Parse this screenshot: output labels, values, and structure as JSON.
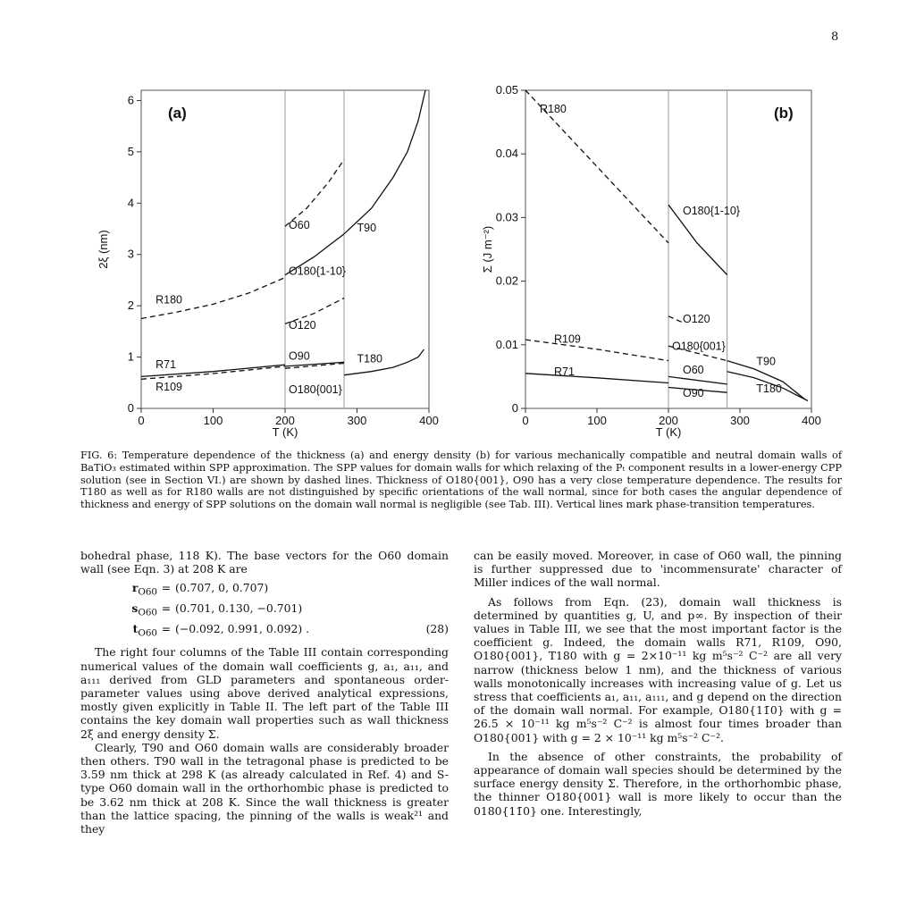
{
  "page_number": "8",
  "figure": {
    "panel_a": {
      "label": "(a)",
      "ylabel": "2ξ (nm)",
      "xlabel": "T (K)",
      "xticks": [
        "0",
        "100",
        "200",
        "300",
        "400"
      ],
      "yticks": [
        "0",
        "1",
        "2",
        "3",
        "4",
        "5",
        "6"
      ],
      "curve_labels": {
        "O60": "O60",
        "T90": "T90",
        "O180_1_10": "O180{1-10}",
        "R180": "R180",
        "O120": "O120",
        "R71": "R71",
        "O90": "O90",
        "T180": "T180",
        "R109": "R109",
        "O180_001": "O180{001}"
      }
    },
    "panel_b": {
      "label": "(b)",
      "ylabel": "Σ (J m⁻²)",
      "xlabel": "T (K)",
      "xticks": [
        "0",
        "100",
        "200",
        "300",
        "400"
      ],
      "yticks": [
        "0",
        "0.01",
        "0.02",
        "0.03",
        "0.04",
        "0.05"
      ],
      "curve_labels": {
        "R180": "R180",
        "O180_1_10": "O180{1-10}",
        "O120": "O120",
        "R109": "R109",
        "O180_001": "O180{001}",
        "T90": "T90",
        "R71": "R71",
        "O60": "O60",
        "T180": "T180",
        "O90": "O90"
      }
    }
  },
  "caption": "FIG. 6: Temperature dependence of the thickness (a) and energy density (b) for various mechanically compatible and neutral domain walls of BaTiO₃ estimated within SPP approximation. The SPP values for domain walls for which relaxing of the Pₜ component results in a lower-energy CPP solution (see in Section VI.) are shown by dashed lines. Thickness of O180{001}, O90 has a very close temperature dependence. The results for T180 as well as for R180 walls are not distinguished by specific orientations of the wall normal, since for both cases the angular dependence of thickness and energy of SPP solutions on the domain wall normal is negligible (see Tab. III). Vertical lines mark phase-transition temperatures.",
  "left_column": {
    "p1": "bohedral phase, 118 K). The base vectors for the O60 domain wall (see Eqn. 3) at 208 K are",
    "eq": [
      {
        "lhs": "r_O60",
        "rhs": "(0.707, 0, 0.707)",
        "no": ""
      },
      {
        "lhs": "s_O60",
        "rhs": "(0.701, 0.130, −0.701)",
        "no": ""
      },
      {
        "lhs": "t_O60",
        "rhs": "(−0.092, 0.991, 0.092) .",
        "no": "(28)"
      }
    ],
    "p2": "The right four columns of the Table III contain corresponding numerical values of the domain wall coefficients g, a₁, a₁₁, and a₁₁₁ derived from GLD parameters and spontaneous order-parameter values using above derived analytical expressions, mostly given explicitly in Table II. The left part of the Table III contains the key domain wall properties such as wall thickness 2ξ and energy density Σ.",
    "p3": "Clearly, T90 and O60 domain walls are considerably broader then others. T90 wall in the tetragonal phase is predicted to be 3.59 nm thick at 298 K (as already calculated in Ref. 4) and S-type O60 domain wall in the orthorhombic phase is predicted to be 3.62 nm thick at 208 K. Since the wall thickness is greater than the lattice spacing, the pinning of the walls is weak²¹ and they"
  },
  "right_column": {
    "p1": "can be easily moved. Moreover, in case of O60 wall, the pinning is further suppressed due to 'incommensurate' character of Miller indices of the wall normal.",
    "p2": "As follows from Eqn. (23), domain wall thickness is determined by quantities g, U, and p∞. By inspection of their values in Table III, we see that the most important factor is the coefficient g. Indeed, the domain walls R71, R109, O90, O180{001}, T180 with g = 2×10⁻¹¹ kg m⁵s⁻² C⁻² are all very narrow (thickness below 1 nm), and the thickness of various walls monotonically increases with increasing value of g. Let us stress that coefficients a₁, a₁₁, a₁₁₁, and g depend on the direction of the domain wall normal. For example, O180{11̄0} with g = 26.5 × 10⁻¹¹ kg m⁵s⁻² C⁻² is almost four times broader than O180{001} with g = 2 × 10⁻¹¹ kg m⁵s⁻² C⁻².",
    "p3": "In the absence of other constraints, the probability of appearance of domain wall species should be determined by the surface energy density Σ. Therefore, in the orthorhombic phase, the thinner O180{001} wall is more likely to occur than the 0180{11̄0} one. Interestingly,"
  },
  "chart_data": [
    {
      "type": "line",
      "panel": "(a)",
      "xlabel": "T (K)",
      "ylabel": "2ξ (nm)",
      "xlim": [
        0,
        400
      ],
      "ylim": [
        0,
        6.2
      ],
      "phase_transitions": [
        200,
        282
      ],
      "series": [
        {
          "name": "R180",
          "dash": true,
          "x": [
            0,
            50,
            100,
            150,
            200
          ],
          "y": [
            1.75,
            1.88,
            2.03,
            2.25,
            2.55
          ]
        },
        {
          "name": "O60",
          "dash": true,
          "x": [
            200,
            230,
            260,
            282
          ],
          "y": [
            3.55,
            3.9,
            4.4,
            4.85
          ]
        },
        {
          "name": "O180{1-10}",
          "dash": false,
          "x": [
            200,
            240,
            282
          ],
          "y": [
            2.6,
            2.95,
            3.4
          ]
        },
        {
          "name": "T90",
          "dash": false,
          "x": [
            282,
            320,
            350,
            370,
            385,
            395
          ],
          "y": [
            3.4,
            3.9,
            4.5,
            5.0,
            5.6,
            6.2
          ]
        },
        {
          "name": "O120",
          "dash": true,
          "x": [
            200,
            240,
            282
          ],
          "y": [
            1.65,
            1.85,
            2.15
          ]
        },
        {
          "name": "R71",
          "dash": false,
          "x": [
            0,
            100,
            200
          ],
          "y": [
            0.62,
            0.72,
            0.85
          ]
        },
        {
          "name": "R109",
          "dash": true,
          "x": [
            0,
            100,
            200
          ],
          "y": [
            0.57,
            0.68,
            0.82
          ]
        },
        {
          "name": "O90",
          "dash": false,
          "x": [
            200,
            282
          ],
          "y": [
            0.82,
            0.9
          ]
        },
        {
          "name": "O180{001}",
          "dash": true,
          "x": [
            200,
            282
          ],
          "y": [
            0.78,
            0.88
          ]
        },
        {
          "name": "T180",
          "dash": false,
          "x": [
            282,
            320,
            350,
            370,
            385,
            393
          ],
          "y": [
            0.65,
            0.72,
            0.8,
            0.9,
            1.0,
            1.15
          ]
        }
      ]
    },
    {
      "type": "line",
      "panel": "(b)",
      "xlabel": "T (K)",
      "ylabel": "Σ (J m⁻²)",
      "xlim": [
        0,
        400
      ],
      "ylim": [
        0,
        0.05
      ],
      "phase_transitions": [
        200,
        282
      ],
      "series": [
        {
          "name": "R180",
          "dash": true,
          "x": [
            0,
            100,
            200
          ],
          "y": [
            0.05,
            0.038,
            0.026
          ]
        },
        {
          "name": "O180{1-10}",
          "dash": false,
          "x": [
            200,
            240,
            282
          ],
          "y": [
            0.032,
            0.026,
            0.021
          ]
        },
        {
          "name": "O120",
          "dash": true,
          "x": [
            200,
            220
          ],
          "y": [
            0.0145,
            0.0135
          ]
        },
        {
          "name": "R109",
          "dash": true,
          "x": [
            0,
            100,
            200
          ],
          "y": [
            0.0108,
            0.0093,
            0.0075
          ]
        },
        {
          "name": "O180{001}",
          "dash": true,
          "x": [
            200,
            282
          ],
          "y": [
            0.0098,
            0.0075
          ]
        },
        {
          "name": "T90",
          "dash": false,
          "x": [
            282,
            320,
            360,
            390
          ],
          "y": [
            0.0075,
            0.0062,
            0.0042,
            0.0015
          ]
        },
        {
          "name": "R71",
          "dash": false,
          "x": [
            0,
            100,
            200
          ],
          "y": [
            0.0055,
            0.0048,
            0.004
          ]
        },
        {
          "name": "O60",
          "dash": false,
          "x": [
            200,
            282
          ],
          "y": [
            0.005,
            0.0038
          ]
        },
        {
          "name": "O90",
          "dash": false,
          "x": [
            200,
            282
          ],
          "y": [
            0.0033,
            0.0025
          ]
        },
        {
          "name": "T180",
          "dash": false,
          "x": [
            282,
            320,
            360,
            395
          ],
          "y": [
            0.0058,
            0.0048,
            0.0032,
            0.0012
          ]
        }
      ]
    }
  ]
}
